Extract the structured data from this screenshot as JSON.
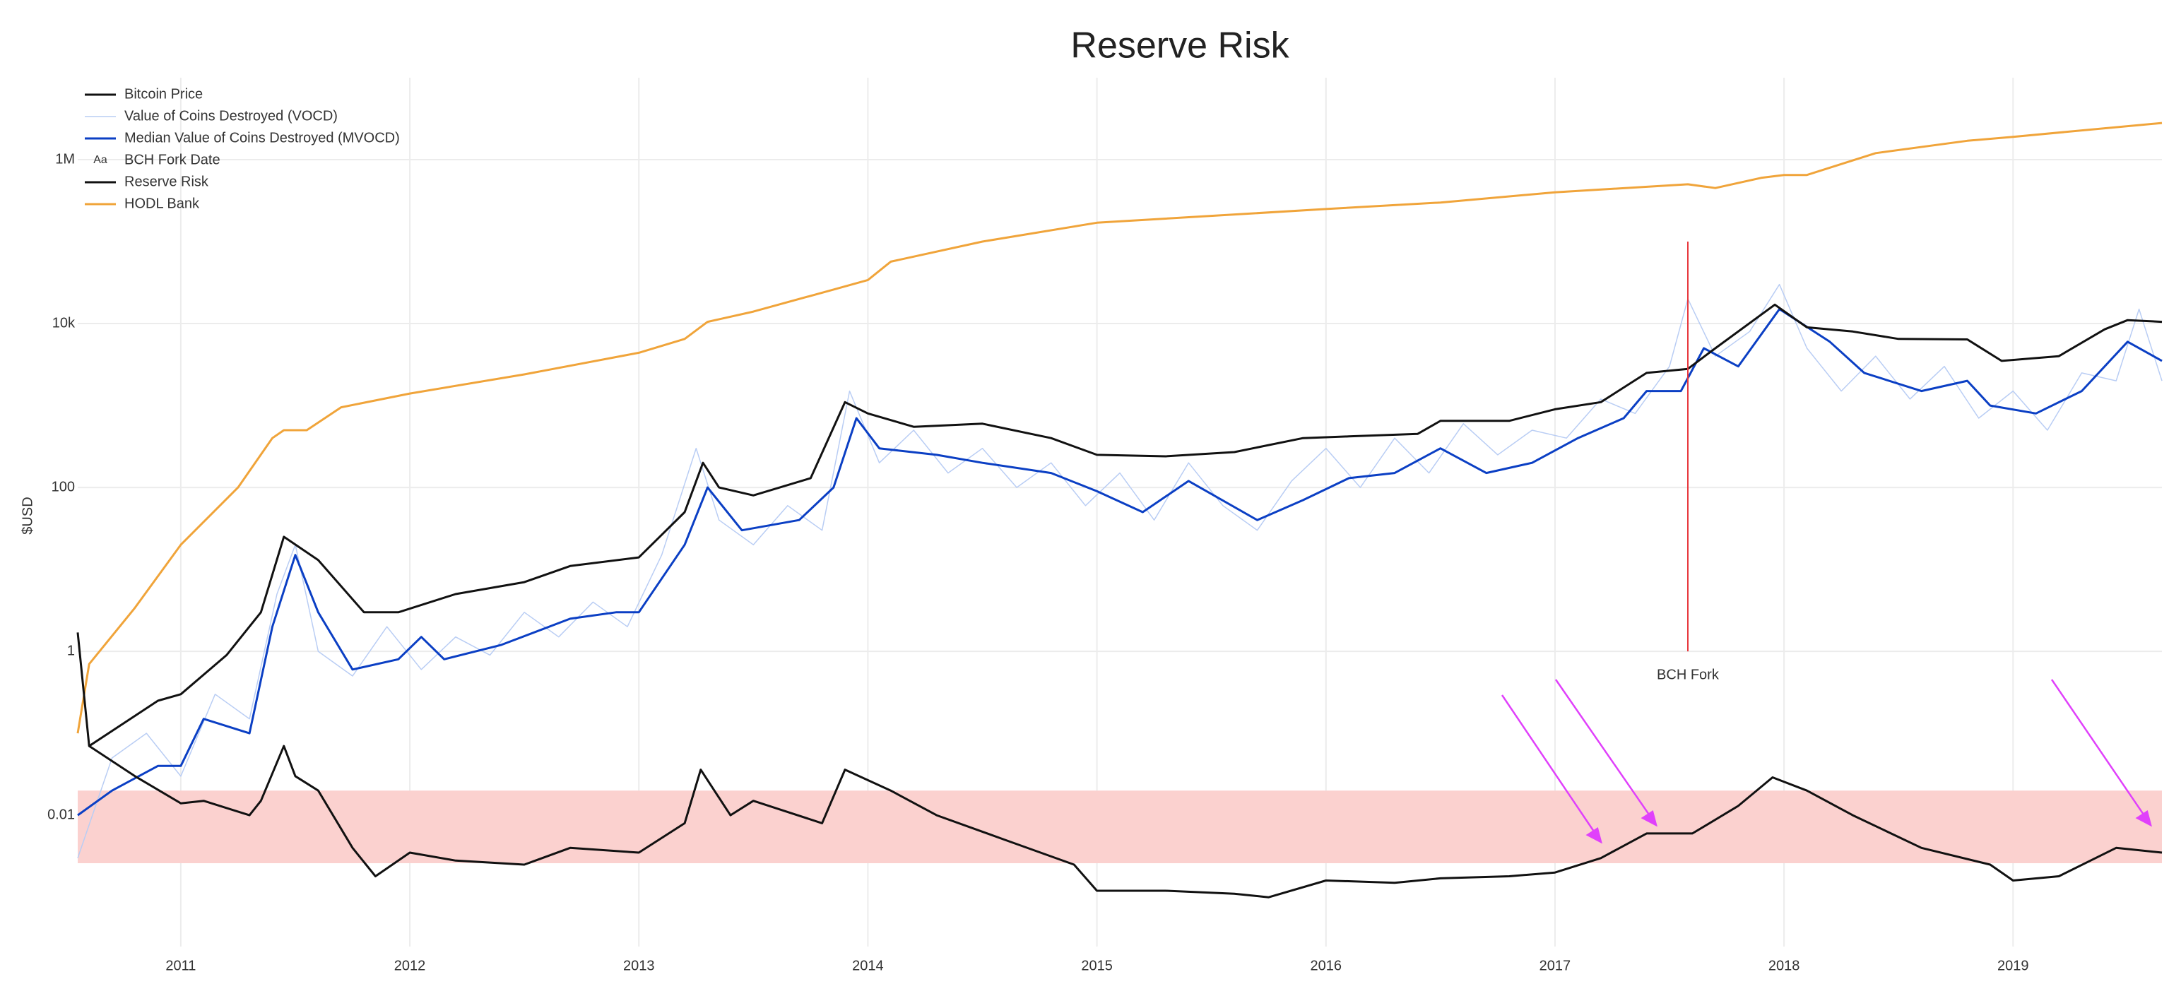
{
  "chart_data": {
    "type": "line",
    "title": "Reserve Risk",
    "y_label": "$USD",
    "log_y": true,
    "grid": true,
    "xlim": [
      2010.55,
      2019.65
    ],
    "xticks": [
      2011,
      2012,
      2013,
      2014,
      2015,
      2016,
      2017,
      2018,
      2019
    ],
    "ylim": [
      0.00025,
      10000000
    ],
    "yticks": [
      0.01,
      1,
      100,
      {
        "value": 10000,
        "label": "10k"
      },
      {
        "value": 1000000,
        "label": "1M"
      }
    ],
    "shaded_band": [
      0.0026,
      0.02
    ],
    "band_color": "#fbd1cf",
    "annotation": "BCH Fork",
    "legend": "top-left",
    "series": [
      {
        "name": "Bitcoin Price",
        "color": "#111111",
        "x": [
          2010.6,
          2010.9,
          2011.0,
          2011.2,
          2011.35,
          2011.45,
          2011.6,
          2011.8,
          2011.95,
          2012.2,
          2012.5,
          2012.7,
          2013.0,
          2013.2,
          2013.28,
          2013.35,
          2013.5,
          2013.75,
          2013.9,
          2014.0,
          2014.2,
          2014.5,
          2014.8,
          2015.0,
          2015.3,
          2015.6,
          2015.9,
          2016.1,
          2016.4,
          2016.5,
          2016.8,
          2017.0,
          2017.2,
          2017.4,
          2017.58,
          2017.7,
          2017.96,
          2018.1,
          2018.3,
          2018.5,
          2018.8,
          2018.95,
          2019.2,
          2019.4,
          2019.5,
          2019.65
        ],
        "values": [
          0.07,
          0.25,
          0.3,
          0.9,
          3,
          25,
          13,
          3,
          3,
          5,
          7,
          11,
          14,
          50,
          200,
          100,
          80,
          130,
          1100,
          800,
          550,
          600,
          400,
          250,
          240,
          270,
          400,
          420,
          450,
          650,
          650,
          900,
          1100,
          2500,
          2800,
          5000,
          17000,
          9000,
          8000,
          6500,
          6400,
          3500,
          4000,
          8500,
          11000,
          10500
        ]
      },
      {
        "name": "Value of Coins Destroyed (VOCD)",
        "color": "#b9cdf4",
        "x": [
          2010.55,
          2010.7,
          2010.85,
          2011.0,
          2011.15,
          2011.3,
          2011.42,
          2011.5,
          2011.6,
          2011.75,
          2011.9,
          2012.05,
          2012.2,
          2012.35,
          2012.5,
          2012.65,
          2012.8,
          2012.95,
          2013.1,
          2013.25,
          2013.35,
          2013.5,
          2013.65,
          2013.8,
          2013.92,
          2014.05,
          2014.2,
          2014.35,
          2014.5,
          2014.65,
          2014.8,
          2014.95,
          2015.1,
          2015.25,
          2015.4,
          2015.55,
          2015.7,
          2015.85,
          2016.0,
          2016.15,
          2016.3,
          2016.45,
          2016.6,
          2016.75,
          2016.9,
          2017.05,
          2017.2,
          2017.35,
          2017.5,
          2017.58,
          2017.7,
          2017.85,
          2017.98,
          2018.1,
          2018.25,
          2018.4,
          2018.55,
          2018.7,
          2018.85,
          2019.0,
          2019.15,
          2019.3,
          2019.45,
          2019.55,
          2019.65
        ],
        "values": [
          0.003,
          0.05,
          0.1,
          0.03,
          0.3,
          0.15,
          5,
          20,
          1,
          0.5,
          2,
          0.6,
          1.5,
          0.9,
          3,
          1.5,
          4,
          2,
          15,
          300,
          40,
          20,
          60,
          30,
          1500,
          200,
          500,
          150,
          300,
          100,
          200,
          60,
          150,
          40,
          200,
          60,
          30,
          120,
          300,
          100,
          400,
          150,
          600,
          250,
          500,
          400,
          1200,
          800,
          3000,
          20000,
          4000,
          8000,
          30000,
          5000,
          1500,
          4000,
          1200,
          3000,
          700,
          1500,
          500,
          2500,
          2000,
          15000,
          2000
        ]
      },
      {
        "name": "Median Value of Coins Destroyed (MVOCD)",
        "color": "#0b3fc4",
        "x": [
          2010.55,
          2010.7,
          2010.9,
          2011.0,
          2011.1,
          2011.3,
          2011.4,
          2011.5,
          2011.6,
          2011.75,
          2011.95,
          2012.05,
          2012.15,
          2012.4,
          2012.7,
          2012.9,
          2013.0,
          2013.2,
          2013.3,
          2013.45,
          2013.7,
          2013.85,
          2013.95,
          2014.05,
          2014.3,
          2014.5,
          2014.8,
          2015.0,
          2015.2,
          2015.4,
          2015.7,
          2015.9,
          2016.1,
          2016.3,
          2016.5,
          2016.7,
          2016.9,
          2017.1,
          2017.3,
          2017.4,
          2017.55,
          2017.65,
          2017.8,
          2017.98,
          2018.2,
          2018.35,
          2018.6,
          2018.8,
          2018.9,
          2019.1,
          2019.3,
          2019.5,
          2019.65
        ],
        "values": [
          0.01,
          0.02,
          0.04,
          0.04,
          0.15,
          0.1,
          2,
          15,
          3,
          0.6,
          0.8,
          1.5,
          0.8,
          1.2,
          2.5,
          3,
          3,
          20,
          100,
          30,
          40,
          100,
          700,
          300,
          250,
          200,
          150,
          90,
          50,
          120,
          40,
          70,
          130,
          150,
          300,
          150,
          200,
          400,
          700,
          1500,
          1500,
          5000,
          3000,
          15000,
          6000,
          2500,
          1500,
          2000,
          1000,
          800,
          1500,
          6000,
          3500
        ]
      },
      {
        "name": "BCH Fork Date",
        "color": "#e8383d",
        "symbol": "Aa",
        "x": [
          2017.58,
          2017.58
        ],
        "values": [
          1,
          100000
        ]
      },
      {
        "name": "Reserve Risk",
        "color": "#111111",
        "x": [
          2010.55,
          2010.6,
          2010.8,
          2011.0,
          2011.1,
          2011.3,
          2011.35,
          2011.45,
          2011.5,
          2011.6,
          2011.75,
          2011.85,
          2012.0,
          2012.2,
          2012.5,
          2012.7,
          2013.0,
          2013.2,
          2013.27,
          2013.4,
          2013.5,
          2013.8,
          2013.9,
          2014.1,
          2014.3,
          2014.6,
          2014.9,
          2015.0,
          2015.3,
          2015.6,
          2015.75,
          2016.0,
          2016.3,
          2016.5,
          2016.8,
          2017.0,
          2017.2,
          2017.4,
          2017.6,
          2017.8,
          2017.95,
          2018.1,
          2018.3,
          2018.6,
          2018.9,
          2019.0,
          2019.2,
          2019.45,
          2019.65
        ],
        "values": [
          1.7,
          0.07,
          0.03,
          0.014,
          0.015,
          0.01,
          0.015,
          0.07,
          0.03,
          0.02,
          0.004,
          0.0018,
          0.0035,
          0.0028,
          0.0025,
          0.004,
          0.0035,
          0.008,
          0.036,
          0.01,
          0.015,
          0.008,
          0.036,
          0.02,
          0.01,
          0.005,
          0.0025,
          0.0012,
          0.0012,
          0.0011,
          0.001,
          0.0016,
          0.0015,
          0.0017,
          0.0018,
          0.002,
          0.003,
          0.006,
          0.006,
          0.013,
          0.029,
          0.02,
          0.01,
          0.004,
          0.0025,
          0.0016,
          0.0018,
          0.004,
          0.0035
        ]
      },
      {
        "name": "HODL Bank",
        "color": "#f0a43a",
        "x": [
          2010.55,
          2010.6,
          2010.8,
          2011.0,
          2011.25,
          2011.4,
          2011.45,
          2011.55,
          2011.7,
          2012.0,
          2012.5,
          2013.0,
          2013.2,
          2013.3,
          2013.5,
          2013.85,
          2014.0,
          2014.1,
          2014.5,
          2015.0,
          2016.0,
          2016.5,
          2017.0,
          2017.58,
          2017.7,
          2017.9,
          2018.0,
          2018.1,
          2018.4,
          2018.8,
          2019.0,
          2019.65
        ],
        "values": [
          0.1,
          0.7,
          3.4,
          20,
          100,
          400,
          500,
          500,
          950,
          1400,
          2400,
          4400,
          6500,
          10500,
          14000,
          26000,
          34000,
          57000,
          100000,
          170000,
          250000,
          300000,
          400000,
          500000,
          450000,
          600000,
          650000,
          650000,
          1200000,
          1700000,
          1900000,
          2800000
        ]
      }
    ]
  }
}
